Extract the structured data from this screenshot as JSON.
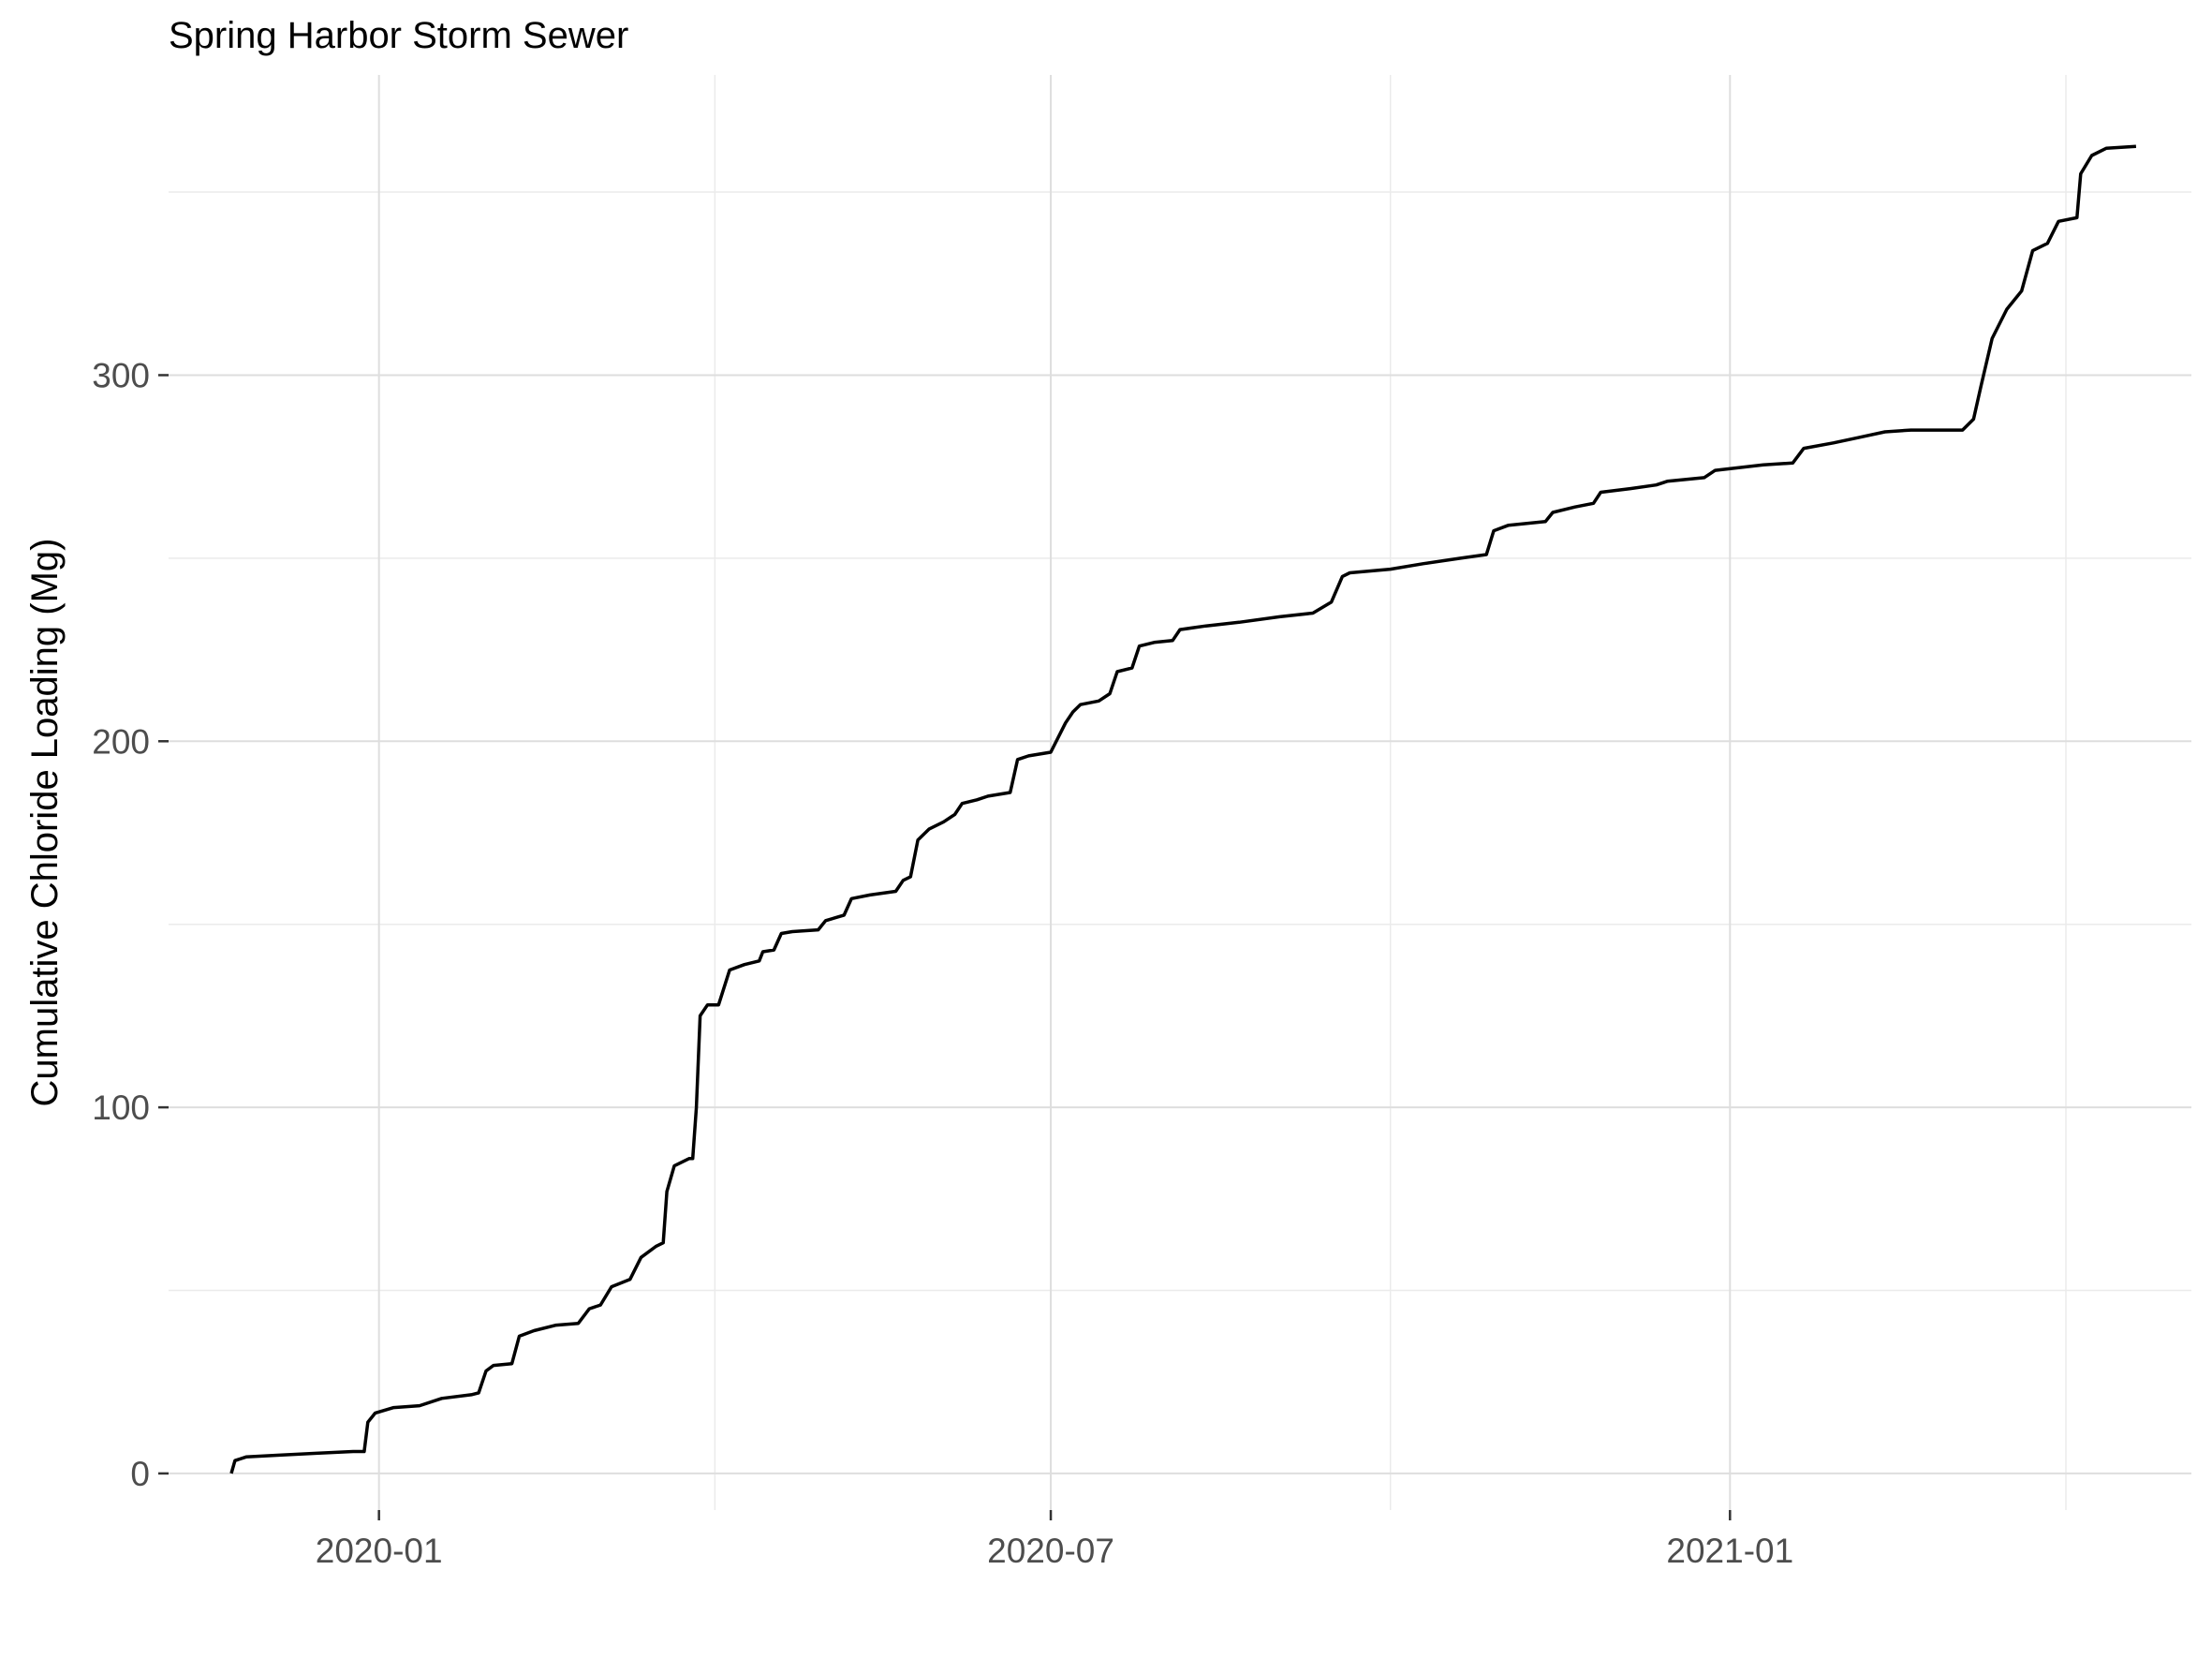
{
  "chart_data": {
    "type": "line",
    "title": "Spring Harbor Storm Sewer",
    "xlabel": "",
    "ylabel": "Cumulative Chloride Loading (Mg)",
    "x_ticks": [
      "2020-01",
      "2020-07",
      "2021-01"
    ],
    "y_ticks": [
      0,
      100,
      200,
      300
    ],
    "ylim": [
      -10,
      382
    ],
    "xlim": [
      "2019-11-05",
      "2021-05-06"
    ],
    "grid": true,
    "legend": "none",
    "series": [
      {
        "color": "#000000",
        "points": [
          [
            "2019-11-22",
            0
          ],
          [
            "2019-11-23",
            3.5
          ],
          [
            "2019-11-26",
            4.5
          ],
          [
            "2019-12-05",
            5
          ],
          [
            "2019-12-15",
            5.5
          ],
          [
            "2019-12-25",
            6
          ],
          [
            "2019-12-28",
            6
          ],
          [
            "2019-12-29",
            14
          ],
          [
            "2019-12-31",
            16.5
          ],
          [
            "2020-01-05",
            18
          ],
          [
            "2020-01-12",
            18.5
          ],
          [
            "2020-01-18",
            20.5
          ],
          [
            "2020-01-26",
            21.5
          ],
          [
            "2020-01-28",
            22
          ],
          [
            "2020-01-30",
            28
          ],
          [
            "2020-02-01",
            29.5
          ],
          [
            "2020-02-06",
            30
          ],
          [
            "2020-02-08",
            37.5
          ],
          [
            "2020-02-12",
            39
          ],
          [
            "2020-02-18",
            40.5
          ],
          [
            "2020-02-24",
            41
          ],
          [
            "2020-02-27",
            45
          ],
          [
            "2020-03-01",
            46
          ],
          [
            "2020-03-04",
            51
          ],
          [
            "2020-03-09",
            53
          ],
          [
            "2020-03-12",
            59
          ],
          [
            "2020-03-16",
            62
          ],
          [
            "2020-03-18",
            63
          ],
          [
            "2020-03-19",
            77
          ],
          [
            "2020-03-21",
            84
          ],
          [
            "2020-03-25",
            86
          ],
          [
            "2020-03-26",
            86
          ],
          [
            "2020-03-27",
            100
          ],
          [
            "2020-03-28",
            125
          ],
          [
            "2020-03-30",
            128
          ],
          [
            "2020-04-02",
            128
          ],
          [
            "2020-04-05",
            137.5
          ],
          [
            "2020-04-09",
            139
          ],
          [
            "2020-04-13",
            140
          ],
          [
            "2020-04-14",
            142.5
          ],
          [
            "2020-04-17",
            143
          ],
          [
            "2020-04-19",
            147.5
          ],
          [
            "2020-04-22",
            148
          ],
          [
            "2020-04-29",
            148.5
          ],
          [
            "2020-05-01",
            151
          ],
          [
            "2020-05-06",
            152.5
          ],
          [
            "2020-05-08",
            157
          ],
          [
            "2020-05-13",
            158
          ],
          [
            "2020-05-20",
            159
          ],
          [
            "2020-05-22",
            162
          ],
          [
            "2020-05-24",
            163
          ],
          [
            "2020-05-26",
            173
          ],
          [
            "2020-05-29",
            176
          ],
          [
            "2020-06-02",
            178
          ],
          [
            "2020-06-05",
            180
          ],
          [
            "2020-06-07",
            183
          ],
          [
            "2020-06-11",
            184
          ],
          [
            "2020-06-14",
            185
          ],
          [
            "2020-06-20",
            186
          ],
          [
            "2020-06-22",
            195
          ],
          [
            "2020-06-25",
            196
          ],
          [
            "2020-07-01",
            197
          ],
          [
            "2020-07-05",
            205
          ],
          [
            "2020-07-07",
            208
          ],
          [
            "2020-07-09",
            210
          ],
          [
            "2020-07-14",
            211
          ],
          [
            "2020-07-17",
            213
          ],
          [
            "2020-07-19",
            219
          ],
          [
            "2020-07-23",
            220
          ],
          [
            "2020-07-25",
            226
          ],
          [
            "2020-07-29",
            227
          ],
          [
            "2020-08-03",
            227.5
          ],
          [
            "2020-08-05",
            230.5
          ],
          [
            "2020-08-12",
            231.5
          ],
          [
            "2020-08-21",
            232.5
          ],
          [
            "2020-09-01",
            234
          ],
          [
            "2020-09-10",
            235
          ],
          [
            "2020-09-15",
            238
          ],
          [
            "2020-09-18",
            245
          ],
          [
            "2020-09-20",
            246
          ],
          [
            "2020-10-01",
            247
          ],
          [
            "2020-10-10",
            248.5
          ],
          [
            "2020-10-20",
            250
          ],
          [
            "2020-10-27",
            251
          ],
          [
            "2020-10-29",
            257.5
          ],
          [
            "2020-11-02",
            259
          ],
          [
            "2020-11-12",
            260
          ],
          [
            "2020-11-14",
            262.5
          ],
          [
            "2020-11-20",
            264
          ],
          [
            "2020-11-25",
            265
          ],
          [
            "2020-11-27",
            268
          ],
          [
            "2020-12-05",
            269
          ],
          [
            "2020-12-12",
            270
          ],
          [
            "2020-12-15",
            271
          ],
          [
            "2020-12-25",
            272
          ],
          [
            "2020-12-28",
            274
          ],
          [
            "2021-01-10",
            275.5
          ],
          [
            "2021-01-18",
            276
          ],
          [
            "2021-01-21",
            280
          ],
          [
            "2021-01-29",
            281.5
          ],
          [
            "2021-02-05",
            283
          ],
          [
            "2021-02-12",
            284.5
          ],
          [
            "2021-02-19",
            285
          ],
          [
            "2021-03-05",
            285
          ],
          [
            "2021-03-08",
            288
          ],
          [
            "2021-03-10",
            297
          ],
          [
            "2021-03-13",
            310
          ],
          [
            "2021-03-17",
            318
          ],
          [
            "2021-03-21",
            323
          ],
          [
            "2021-03-24",
            334
          ],
          [
            "2021-03-28",
            336
          ],
          [
            "2021-03-31",
            342
          ],
          [
            "2021-04-05",
            343
          ],
          [
            "2021-04-06",
            355
          ],
          [
            "2021-04-09",
            360
          ],
          [
            "2021-04-13",
            362
          ],
          [
            "2021-04-21",
            362.5
          ]
        ]
      }
    ]
  }
}
